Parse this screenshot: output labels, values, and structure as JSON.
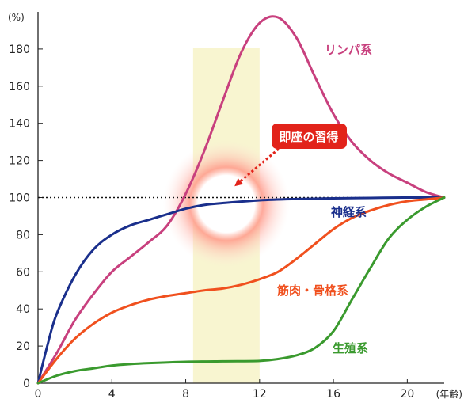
{
  "chart_data": {
    "type": "line",
    "ylabel": "(%)",
    "xlabel": "(年齢)",
    "xlim": [
      0,
      22
    ],
    "ylim": [
      0,
      200
    ],
    "xticks": [
      "0",
      "4",
      "8",
      "12",
      "16",
      "20"
    ],
    "yticks": [
      "0",
      "20",
      "40",
      "60",
      "80",
      "100",
      "120",
      "140",
      "160",
      "180"
    ],
    "reference_line": 100,
    "highlight_band": {
      "x": [
        8.4,
        12
      ]
    },
    "series": [
      {
        "name": "リンパ系",
        "color": "#c8407e",
        "points": [
          [
            0,
            0
          ],
          [
            1,
            16
          ],
          [
            2,
            34
          ],
          [
            3,
            48
          ],
          [
            4,
            60
          ],
          [
            5,
            68
          ],
          [
            6,
            76
          ],
          [
            7,
            85
          ],
          [
            8,
            102
          ],
          [
            9,
            125
          ],
          [
            10,
            152
          ],
          [
            11,
            178
          ],
          [
            12,
            194
          ],
          [
            13,
            197
          ],
          [
            14,
            186
          ],
          [
            15,
            165
          ],
          [
            16,
            145
          ],
          [
            17,
            130
          ],
          [
            18,
            120
          ],
          [
            19,
            113
          ],
          [
            20,
            108
          ],
          [
            21,
            103
          ],
          [
            22,
            100
          ]
        ]
      },
      {
        "name": "神経系",
        "color": "#1a2f8c",
        "points": [
          [
            0,
            0
          ],
          [
            0.5,
            20
          ],
          [
            1,
            37
          ],
          [
            2,
            58
          ],
          [
            3,
            72
          ],
          [
            4,
            80
          ],
          [
            5,
            85
          ],
          [
            6,
            88
          ],
          [
            7,
            91
          ],
          [
            8,
            94
          ],
          [
            9,
            96
          ],
          [
            10,
            97
          ],
          [
            12,
            98.5
          ],
          [
            14,
            99.2
          ],
          [
            16,
            99.6
          ],
          [
            18,
            99.8
          ],
          [
            20,
            100
          ],
          [
            22,
            100
          ]
        ]
      },
      {
        "name": "筋肉・骨格系",
        "color": "#f0501e",
        "points": [
          [
            0,
            0
          ],
          [
            1,
            13
          ],
          [
            2,
            24
          ],
          [
            3,
            32
          ],
          [
            4,
            38
          ],
          [
            5,
            42
          ],
          [
            6,
            45
          ],
          [
            7,
            47
          ],
          [
            8,
            48.5
          ],
          [
            9,
            50
          ],
          [
            10,
            51
          ],
          [
            11,
            53
          ],
          [
            12,
            56
          ],
          [
            13,
            60
          ],
          [
            14,
            67
          ],
          [
            15,
            75
          ],
          [
            16,
            83
          ],
          [
            17,
            89
          ],
          [
            18,
            93
          ],
          [
            19,
            96
          ],
          [
            20,
            98
          ],
          [
            21,
            99
          ],
          [
            22,
            100
          ]
        ]
      },
      {
        "name": "生殖系",
        "color": "#3a9a2e",
        "points": [
          [
            0,
            0
          ],
          [
            1,
            4
          ],
          [
            2,
            6.5
          ],
          [
            3,
            8
          ],
          [
            4,
            9.5
          ],
          [
            5,
            10.3
          ],
          [
            6,
            10.8
          ],
          [
            8,
            11.5
          ],
          [
            10,
            11.8
          ],
          [
            12,
            12
          ],
          [
            13,
            13
          ],
          [
            14,
            15
          ],
          [
            15,
            19
          ],
          [
            16,
            28
          ],
          [
            17,
            45
          ],
          [
            18,
            62
          ],
          [
            19,
            78
          ],
          [
            20,
            88
          ],
          [
            21,
            95
          ],
          [
            22,
            100
          ]
        ]
      }
    ],
    "annotations": [
      {
        "text": "即座の習得",
        "target": [
          10.2,
          100
        ]
      }
    ]
  }
}
